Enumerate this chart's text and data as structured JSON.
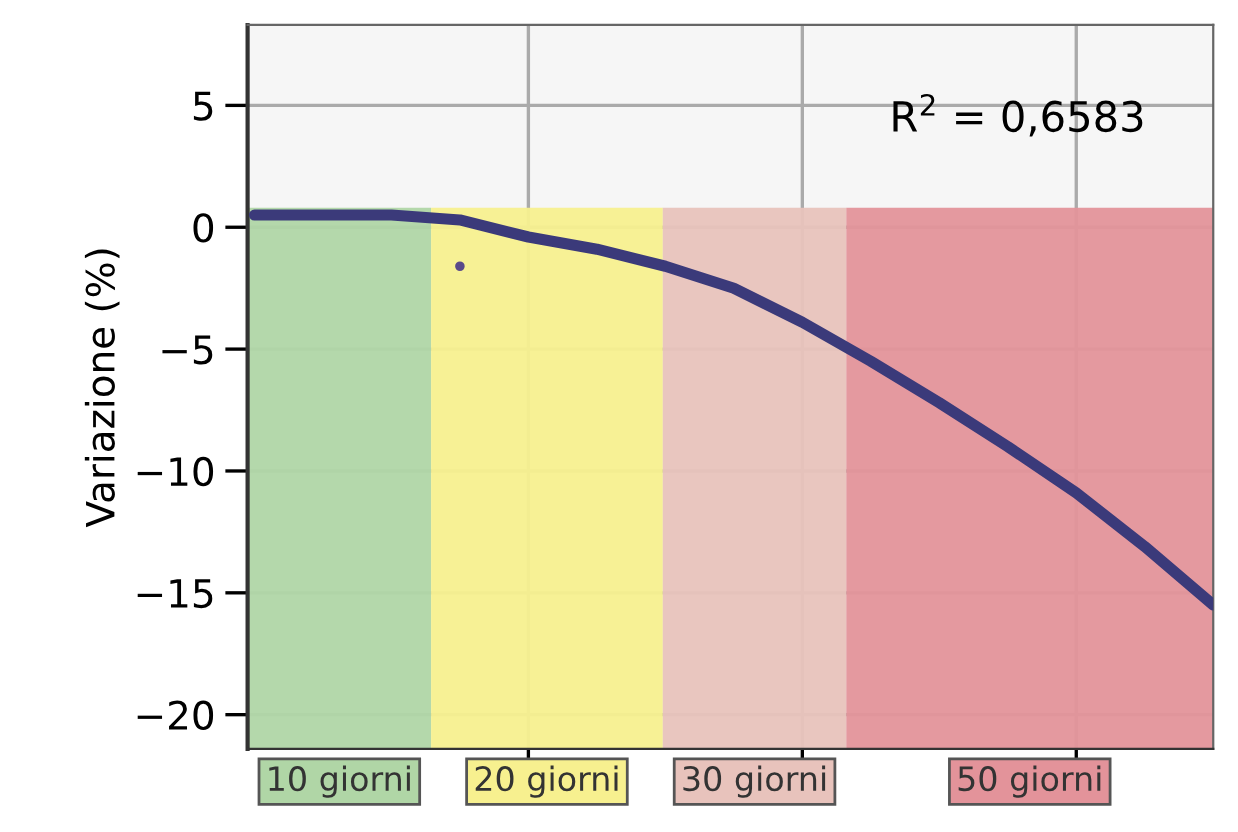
{
  "chart_data": {
    "type": "line",
    "ylabel": "Variazione (%)",
    "categories": [
      null,
      null,
      null,
      null,
      null,
      null,
      null,
      null,
      null,
      null,
      null,
      null,
      null,
      null,
      null
    ],
    "ylim": [
      -21.4,
      8.3
    ],
    "yticks": [
      5,
      0,
      -5,
      -10,
      -15,
      -20
    ],
    "tick_labels": "y",
    "grid": true,
    "marker": "none",
    "line_style": "solid",
    "series": [
      {
        "color": "#3b3a7a",
        "values": [
          0.5,
          0.5,
          0.5,
          0.3,
          -0.4,
          -0.9,
          -1.6,
          -2.5,
          -3.9,
          -5.5,
          -7.2,
          -9.0,
          -10.9,
          -13.1,
          -15.5
        ]
      },
      {
        "type": "scatter",
        "color": "#5a4a8a",
        "values": [
          null,
          null,
          null,
          -1.6,
          null,
          null,
          null,
          null,
          null,
          null,
          null,
          null,
          null,
          null,
          null
        ]
      }
    ],
    "annotations": [
      "R$^{2}$ = 0,6583",
      "10 giorni",
      "20 giorni",
      "30 giorni",
      "50 giorni"
    ]
  }
}
